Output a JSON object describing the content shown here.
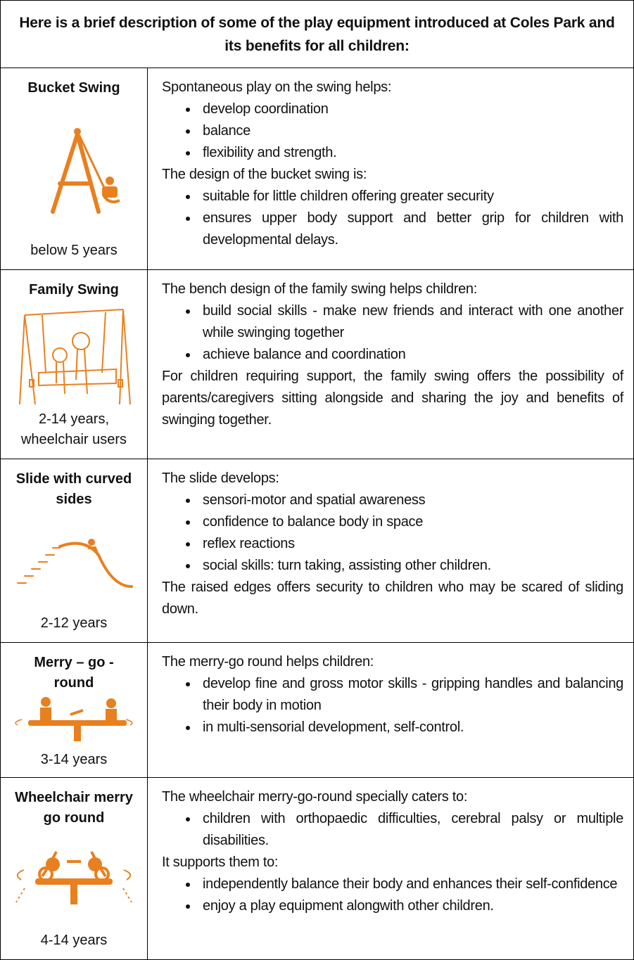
{
  "header": {
    "title": "Here is a brief description of some of the play equipment introduced at Coles Park and its benefits for all children:"
  },
  "rows": [
    {
      "name": "Bucket Swing",
      "age": "below 5 years",
      "content": [
        {
          "text": "Spontaneous play on the swing helps:",
          "bullets": [
            "develop coordination",
            "balance",
            "flexibility and strength."
          ]
        },
        {
          "text": "The design of the bucket swing is:",
          "bullets": [
            "suitable for little children offering greater security",
            "ensures upper body support and better grip for children with developmental delays."
          ]
        }
      ]
    },
    {
      "name": "Family Swing",
      "age": "2-14 years, wheelchair users",
      "content": [
        {
          "text": "The bench design of the family swing helps children:",
          "bullets": [
            "build social skills - make new friends and interact with one another while swinging together",
            "achieve balance and coordination"
          ]
        },
        {
          "text": "For children requiring support, the family swing offers the possibility of parents/caregivers sitting alongside and sharing the joy and benefits of swinging together."
        }
      ]
    },
    {
      "name": "Slide with curved sides",
      "age": "2-12 years",
      "content": [
        {
          "text": "The slide develops:",
          "bullets": [
            "sensori-motor and spatial awareness",
            "confidence to balance body in space",
            "reflex reactions",
            "social skills: turn taking, assisting other children."
          ]
        },
        {
          "text": "The raised edges offers security to children who may be scared of sliding down."
        }
      ]
    },
    {
      "name": "Merry – go - round",
      "age": "3-14 years",
      "content": [
        {
          "text": "The merry-go round helps children:",
          "bullets": [
            "develop fine and gross motor skills - gripping handles and balancing their body in motion",
            "in multi-sensorial development, self-control."
          ]
        }
      ]
    },
    {
      "name": "Wheelchair merry go round",
      "age": "4-14 years",
      "content": [
        {
          "text": "The wheelchair merry-go-round specially caters to:",
          "bullets": [
            "children with orthopaedic difficulties, cerebral palsy or multiple disabilities."
          ]
        },
        {
          "text": "It supports them to:",
          "bullets": [
            "independently balance their body and enhances their self-confidence",
            "enjoy a play equipment alongwith other children."
          ]
        }
      ]
    }
  ]
}
